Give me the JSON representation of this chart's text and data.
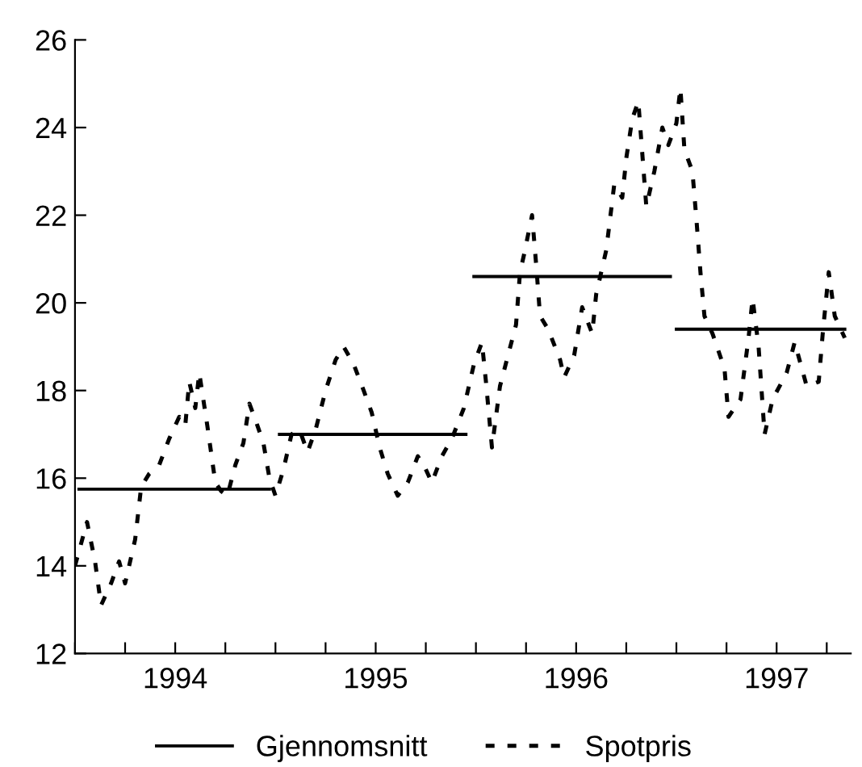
{
  "chart_data": {
    "type": "line",
    "xlim": [
      1994,
      1997.87
    ],
    "ylim": [
      12,
      26
    ],
    "xticks": [
      {
        "value": 1994,
        "label": null
      },
      {
        "value": 1994.25,
        "label": null
      },
      {
        "value": 1994.5,
        "label": "1994"
      },
      {
        "value": 1994.75,
        "label": null
      },
      {
        "value": 1995,
        "label": null
      },
      {
        "value": 1995.25,
        "label": null
      },
      {
        "value": 1995.5,
        "label": "1995"
      },
      {
        "value": 1995.75,
        "label": null
      },
      {
        "value": 1996,
        "label": null
      },
      {
        "value": 1996.25,
        "label": null
      },
      {
        "value": 1996.5,
        "label": "1996"
      },
      {
        "value": 1996.75,
        "label": null
      },
      {
        "value": 1997,
        "label": null
      },
      {
        "value": 1997.25,
        "label": null
      },
      {
        "value": 1997.5,
        "label": "1997"
      },
      {
        "value": 1997.75,
        "label": null
      }
    ],
    "yticks": [
      12,
      14,
      16,
      18,
      20,
      22,
      24,
      26
    ],
    "grid": false,
    "legend": "bottom",
    "series": [
      {
        "name": "Gjennomsnitt",
        "color": "#000000",
        "line_style": "solid",
        "x": [
          1994.02,
          1994.97,
          1994.99,
          1995.02,
          1995.95,
          1995.97,
          1995.99,
          1996.97,
          1996.99,
          1997.0,
          1997.84
        ],
        "values": [
          15.75,
          15.75,
          null,
          17.0,
          17.0,
          null,
          20.6,
          20.6,
          null,
          19.4,
          19.4
        ]
      },
      {
        "name": "Spotpris",
        "color": "#000000",
        "line_style": "dashed",
        "x": [
          1994.0,
          1994.06,
          1994.1,
          1994.13,
          1994.18,
          1994.22,
          1994.25,
          1994.3,
          1994.33,
          1994.37,
          1994.42,
          1994.47,
          1994.52,
          1994.55,
          1994.57,
          1994.6,
          1994.62,
          1994.66,
          1994.7,
          1994.73,
          1994.76,
          1994.8,
          1994.84,
          1994.87,
          1994.91,
          1994.94,
          1994.97,
          1995.0,
          1995.04,
          1995.08,
          1995.12,
          1995.16,
          1995.2,
          1995.25,
          1995.3,
          1995.34,
          1995.39,
          1995.44,
          1995.48,
          1995.52,
          1995.56,
          1995.61,
          1995.66,
          1995.71,
          1995.74,
          1995.78,
          1995.83,
          1995.88,
          1995.94,
          1995.99,
          1996.03,
          1996.05,
          1996.08,
          1996.12,
          1996.16,
          1996.2,
          1996.22,
          1996.24,
          1996.28,
          1996.3,
          1996.32,
          1996.36,
          1996.42,
          1996.44,
          1996.49,
          1996.53,
          1996.58,
          1996.6,
          1996.65,
          1996.69,
          1996.73,
          1996.75,
          1996.78,
          1996.81,
          1996.83,
          1996.85,
          1996.89,
          1996.93,
          1996.96,
          1997.0,
          1997.02,
          1997.04,
          1997.08,
          1997.1,
          1997.12,
          1997.14,
          1997.18,
          1997.24,
          1997.26,
          1997.32,
          1997.36,
          1997.38,
          1997.41,
          1997.44,
          1997.48,
          1997.55,
          1997.59,
          1997.65,
          1997.71,
          1997.73,
          1997.76,
          1997.79,
          1997.84
        ],
        "values": [
          14.0,
          15.0,
          14.1,
          13.1,
          13.6,
          14.1,
          13.6,
          14.6,
          15.8,
          16.1,
          16.3,
          16.9,
          17.4,
          17.2,
          18.2,
          17.6,
          18.4,
          17.2,
          15.9,
          15.7,
          15.6,
          16.3,
          16.8,
          17.7,
          17.2,
          16.8,
          16.0,
          15.6,
          16.2,
          17.0,
          17.1,
          16.6,
          17.1,
          18.0,
          18.7,
          19.0,
          18.6,
          18.0,
          17.5,
          16.7,
          16.1,
          15.6,
          15.9,
          16.5,
          16.3,
          15.9,
          16.5,
          16.9,
          17.6,
          18.6,
          19.1,
          18.2,
          16.7,
          18.1,
          18.8,
          19.5,
          20.7,
          21.1,
          22.0,
          20.9,
          19.7,
          19.4,
          18.7,
          18.3,
          18.8,
          19.9,
          19.3,
          20.2,
          21.2,
          22.7,
          22.4,
          23.3,
          24.2,
          24.6,
          23.4,
          22.2,
          23.0,
          24.0,
          23.6,
          24.1,
          24.9,
          23.5,
          23.0,
          21.9,
          20.7,
          19.7,
          19.3,
          18.5,
          17.4,
          17.8,
          19.2,
          20.1,
          19.0,
          17.0,
          17.8,
          18.4,
          19.1,
          18.1,
          18.2,
          19.3,
          20.7,
          19.7,
          19.2
        ]
      }
    ]
  }
}
